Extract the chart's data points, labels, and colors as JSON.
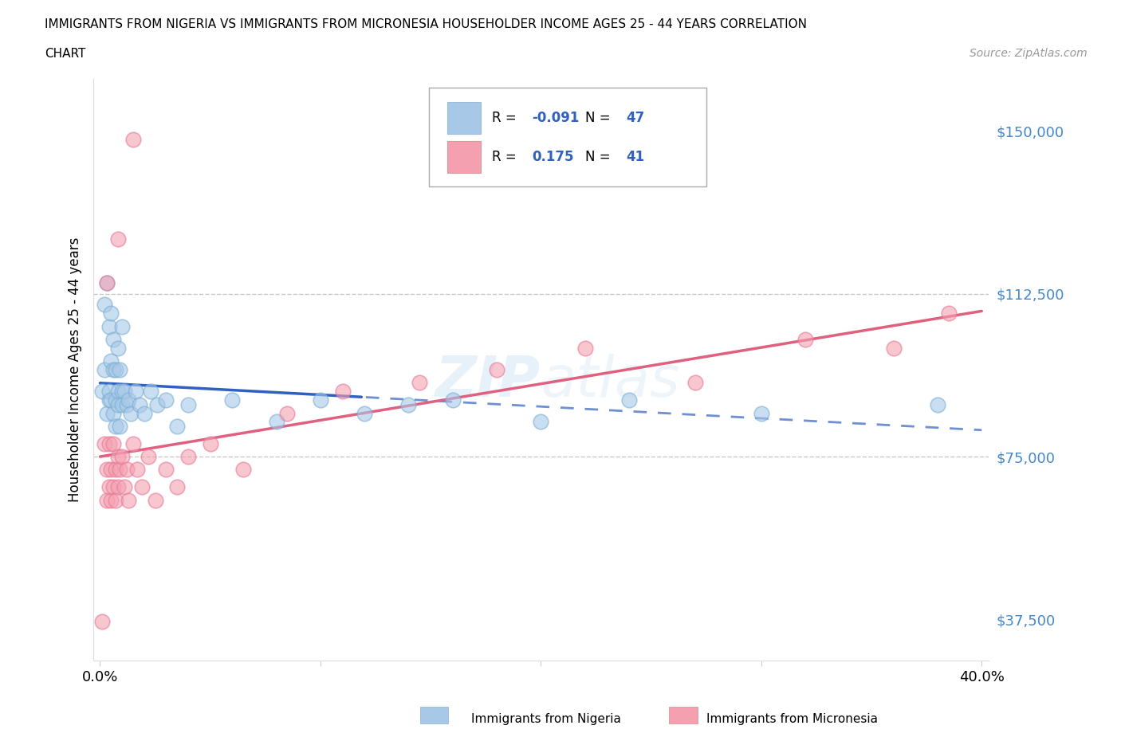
{
  "title_line1": "IMMIGRANTS FROM NIGERIA VS IMMIGRANTS FROM MICRONESIA HOUSEHOLDER INCOME AGES 25 - 44 YEARS CORRELATION",
  "title_line2": "CHART",
  "source_text": "Source: ZipAtlas.com",
  "ylabel": "Householder Income Ages 25 - 44 years",
  "xlim": [
    -0.003,
    0.403
  ],
  "ylim": [
    28000,
    162000
  ],
  "yticks": [
    37500,
    75000,
    112500,
    150000
  ],
  "ytick_labels": [
    "$37,500",
    "$75,000",
    "$112,500",
    "$150,000"
  ],
  "xticks": [
    0.0,
    0.1,
    0.2,
    0.3,
    0.4
  ],
  "xtick_labels": [
    "0.0%",
    "",
    "",
    "",
    "40.0%"
  ],
  "watermark": "ZIPatlas",
  "color_nigeria": "#a8c8e8",
  "color_nigeria_edge": "#7aafd4",
  "color_micronesia": "#f4a0b0",
  "color_micronesia_edge": "#e87898",
  "color_nigeria_line": "#3060c0",
  "color_micronesia_line": "#e06080",
  "color_axis_label": "#4488cc",
  "nigeria_x": [
    0.001,
    0.002,
    0.002,
    0.003,
    0.003,
    0.004,
    0.004,
    0.004,
    0.005,
    0.005,
    0.005,
    0.006,
    0.006,
    0.006,
    0.007,
    0.007,
    0.007,
    0.008,
    0.008,
    0.008,
    0.009,
    0.009,
    0.01,
    0.01,
    0.01,
    0.011,
    0.012,
    0.013,
    0.014,
    0.016,
    0.018,
    0.02,
    0.023,
    0.026,
    0.03,
    0.035,
    0.04,
    0.06,
    0.08,
    0.1,
    0.12,
    0.14,
    0.16,
    0.2,
    0.24,
    0.3,
    0.38
  ],
  "nigeria_y": [
    90000,
    95000,
    110000,
    85000,
    115000,
    88000,
    105000,
    90000,
    97000,
    108000,
    88000,
    95000,
    85000,
    102000,
    88000,
    95000,
    82000,
    90000,
    100000,
    87000,
    95000,
    82000,
    90000,
    105000,
    87000,
    90000,
    87000,
    88000,
    85000,
    90000,
    87000,
    85000,
    90000,
    87000,
    88000,
    82000,
    87000,
    88000,
    83000,
    88000,
    85000,
    87000,
    88000,
    83000,
    88000,
    85000,
    87000
  ],
  "micronesia_x": [
    0.001,
    0.002,
    0.003,
    0.003,
    0.004,
    0.004,
    0.005,
    0.005,
    0.006,
    0.006,
    0.007,
    0.007,
    0.008,
    0.008,
    0.009,
    0.01,
    0.011,
    0.012,
    0.013,
    0.015,
    0.017,
    0.019,
    0.022,
    0.025,
    0.03,
    0.035,
    0.04,
    0.05,
    0.065,
    0.085,
    0.11,
    0.145,
    0.18,
    0.22,
    0.27,
    0.32,
    0.36,
    0.385,
    0.003,
    0.008,
    0.015
  ],
  "micronesia_y": [
    37000,
    78000,
    72000,
    65000,
    78000,
    68000,
    72000,
    65000,
    78000,
    68000,
    72000,
    65000,
    75000,
    68000,
    72000,
    75000,
    68000,
    72000,
    65000,
    78000,
    72000,
    68000,
    75000,
    65000,
    72000,
    68000,
    75000,
    78000,
    72000,
    85000,
    90000,
    92000,
    95000,
    100000,
    92000,
    102000,
    100000,
    108000,
    115000,
    125000,
    148000
  ],
  "dashed_line_y1": 112500,
  "dashed_line_y2": 75000
}
